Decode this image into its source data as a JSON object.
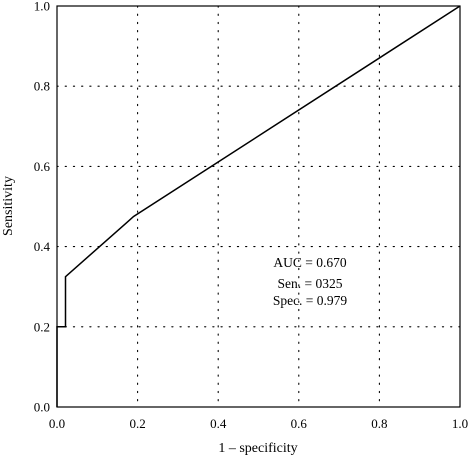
{
  "chart_data": {
    "type": "line",
    "title": "",
    "xlabel": "1 – specificity",
    "ylabel": "Sensitivity",
    "xlim": [
      0.0,
      1.0
    ],
    "ylim": [
      0.0,
      1.0
    ],
    "x_ticks": [
      "0.0",
      "0.2",
      "0.4",
      "0.6",
      "0.8",
      "1.0"
    ],
    "y_ticks": [
      "0.0",
      "0.2",
      "0.4",
      "0.6",
      "0.8",
      "1.0"
    ],
    "grid": "dotted",
    "series": [
      {
        "x": [
          0.0,
          0.0,
          0.021,
          0.021,
          0.19,
          1.0
        ],
        "y": [
          0.0,
          0.2,
          0.2,
          0.325,
          0.475,
          1.0
        ]
      }
    ],
    "annotations": [
      "AUC = 0.670",
      "Sen. = 0325",
      "Spec. = 0.979"
    ]
  },
  "colors": {
    "line": "#000000",
    "grid": "#000000",
    "frame": "#000000"
  }
}
